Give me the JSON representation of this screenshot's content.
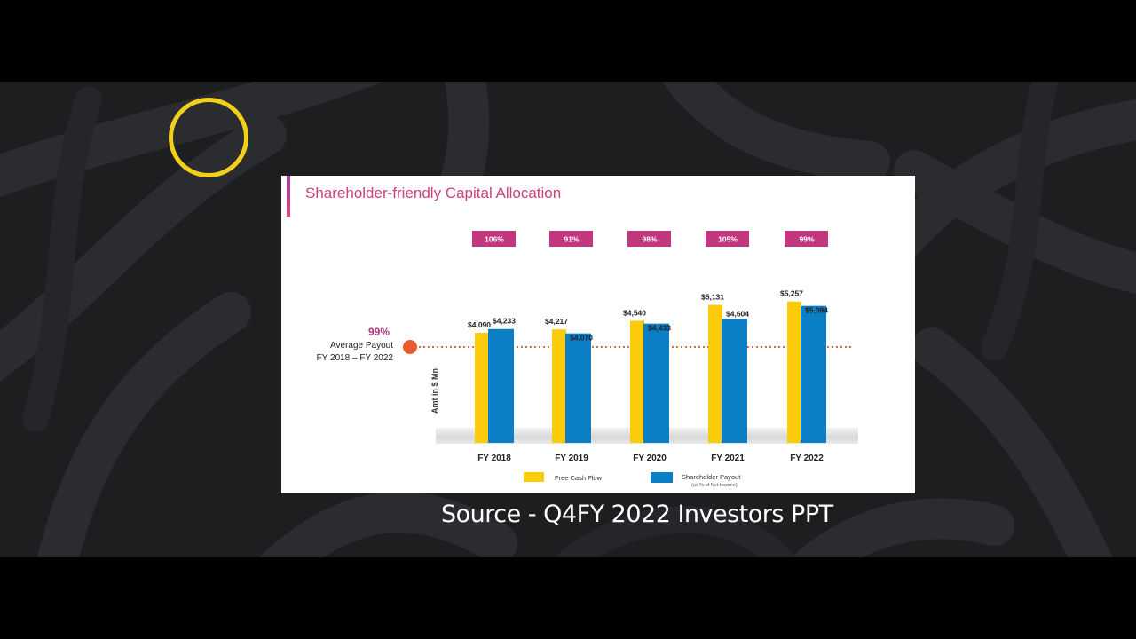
{
  "caption": "Source - Q4FY 2022 Investors PPT",
  "colors": {
    "free_cash_flow": "#fccb09",
    "shareholder_payout": "#0a7fc6",
    "title": "#d0407c",
    "badge": "#c2387f",
    "dotted_line": "#e4683a",
    "ring": "#f2cf1b"
  },
  "slide": {
    "title": "Shareholder-friendly Capital Allocation",
    "average": {
      "percent": "99%",
      "label_line1": "Average Payout",
      "label_line2": "FY 2018 – FY 2022"
    }
  },
  "chart_data": {
    "type": "bar",
    "title": "Shareholder-friendly Capital Allocation",
    "ylabel": "Amt in $ Mn",
    "categories": [
      "FY 2018",
      "FY 2019",
      "FY 2020",
      "FY 2021",
      "FY 2022"
    ],
    "series": [
      {
        "name": "Free Cash Flow",
        "values": [
          4090,
          4217,
          4540,
          5131,
          5257
        ],
        "labels": [
          "$4,090",
          "$4,217",
          "$4,540",
          "$5,131",
          "$5,257"
        ]
      },
      {
        "name": "Shareholder Payout",
        "sub_note": "(as % of Net Income)",
        "values": [
          4233,
          4070,
          4433,
          4604,
          5094
        ],
        "labels": [
          "$4,233",
          "$4,070",
          "$4,433",
          "$4,604",
          "$5,094"
        ]
      }
    ],
    "payout_ratio": [
      "106%",
      "91%",
      "98%",
      "105%",
      "99%"
    ],
    "average_payout": "99%",
    "reference_line": "Average Payout FY 2018 – FY 2022",
    "legend_position": "bottom",
    "grid": false
  }
}
